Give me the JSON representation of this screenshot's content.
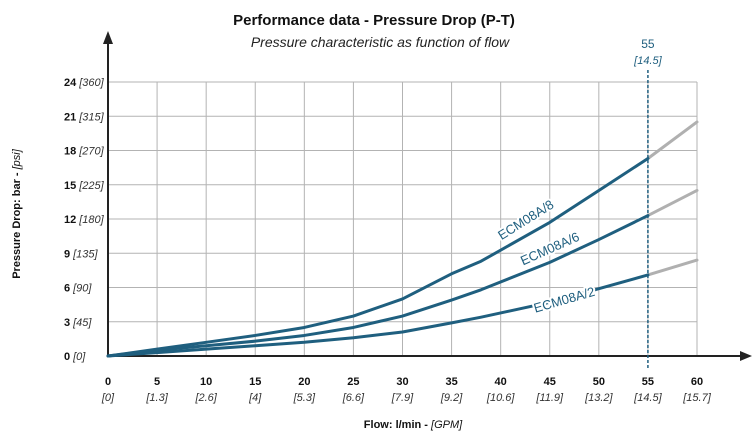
{
  "chart_data": {
    "type": "line",
    "title": "Performance data - Pressure Drop (P-T)",
    "subtitle": "Pressure characteristic as function of flow",
    "xlabel": "Flow: l/min - ",
    "xlabel_alt": "[GPM]",
    "ylabel": "Pressure Drop: bar - ",
    "ylabel_alt": "[psi]",
    "xlim": [
      0,
      60
    ],
    "ylim": [
      0,
      24
    ],
    "grid": true,
    "x_ticks": [
      {
        "value": 0,
        "label": "0",
        "alt": "[0]"
      },
      {
        "value": 5,
        "label": "5",
        "alt": "[1.3]"
      },
      {
        "value": 10,
        "label": "10",
        "alt": "[2.6]"
      },
      {
        "value": 15,
        "label": "15",
        "alt": "[4]"
      },
      {
        "value": 20,
        "label": "20",
        "alt": "[5.3]"
      },
      {
        "value": 25,
        "label": "25",
        "alt": "[6.6]"
      },
      {
        "value": 30,
        "label": "30",
        "alt": "[7.9]"
      },
      {
        "value": 35,
        "label": "35",
        "alt": "[9.2]"
      },
      {
        "value": 40,
        "label": "40",
        "alt": "[10.6]"
      },
      {
        "value": 45,
        "label": "45",
        "alt": "[11.9]"
      },
      {
        "value": 50,
        "label": "50",
        "alt": "[13.2]"
      },
      {
        "value": 55,
        "label": "55",
        "alt": "[14.5]"
      },
      {
        "value": 60,
        "label": "60",
        "alt": "[15.7]"
      }
    ],
    "y_ticks": [
      {
        "value": 0,
        "label": "0",
        "alt": "[0]"
      },
      {
        "value": 3,
        "label": "3",
        "alt": "[45]"
      },
      {
        "value": 6,
        "label": "6",
        "alt": "[90]"
      },
      {
        "value": 9,
        "label": "9",
        "alt": "[135]"
      },
      {
        "value": 12,
        "label": "12",
        "alt": "[180]"
      },
      {
        "value": 15,
        "label": "15",
        "alt": "[225]"
      },
      {
        "value": 18,
        "label": "18",
        "alt": "[270]"
      },
      {
        "value": 21,
        "label": "21",
        "alt": "[315]"
      },
      {
        "value": 24,
        "label": "24",
        "alt": "[360]"
      }
    ],
    "marker": {
      "x": 55,
      "label": "55",
      "alt": "[14.5]",
      "color": "#1f5f7f"
    },
    "series": [
      {
        "name": "ECM08A/8",
        "color": "#1f5f7f",
        "extension_color": "#b0b0b0",
        "x": [
          0,
          5,
          10,
          15,
          20,
          25,
          30,
          35,
          38,
          45,
          50,
          55
        ],
        "y": [
          0,
          0.6,
          1.2,
          1.8,
          2.5,
          3.5,
          5.0,
          7.2,
          8.3,
          11.7,
          14.5,
          17.3
        ],
        "extension_x": [
          55,
          60
        ],
        "extension_y": [
          17.3,
          20.5
        ]
      },
      {
        "name": "ECM08A/6",
        "color": "#1f5f7f",
        "extension_color": "#b0b0b0",
        "x": [
          0,
          5,
          10,
          15,
          20,
          25,
          30,
          35,
          38,
          45,
          50,
          55
        ],
        "y": [
          0,
          0.5,
          0.9,
          1.3,
          1.8,
          2.5,
          3.5,
          4.9,
          5.8,
          8.2,
          10.2,
          12.3
        ],
        "extension_x": [
          55,
          60
        ],
        "extension_y": [
          12.3,
          14.5
        ]
      },
      {
        "name": "ECM08A/2",
        "color": "#1f5f7f",
        "extension_color": "#b0b0b0",
        "x": [
          0,
          5,
          10,
          15,
          20,
          25,
          30,
          35,
          38,
          45,
          50,
          55
        ],
        "y": [
          0,
          0.3,
          0.6,
          0.9,
          1.2,
          1.6,
          2.1,
          2.9,
          3.4,
          4.7,
          5.9,
          7.1
        ],
        "extension_x": [
          55,
          60
        ],
        "extension_y": [
          7.1,
          8.4
        ]
      }
    ]
  }
}
